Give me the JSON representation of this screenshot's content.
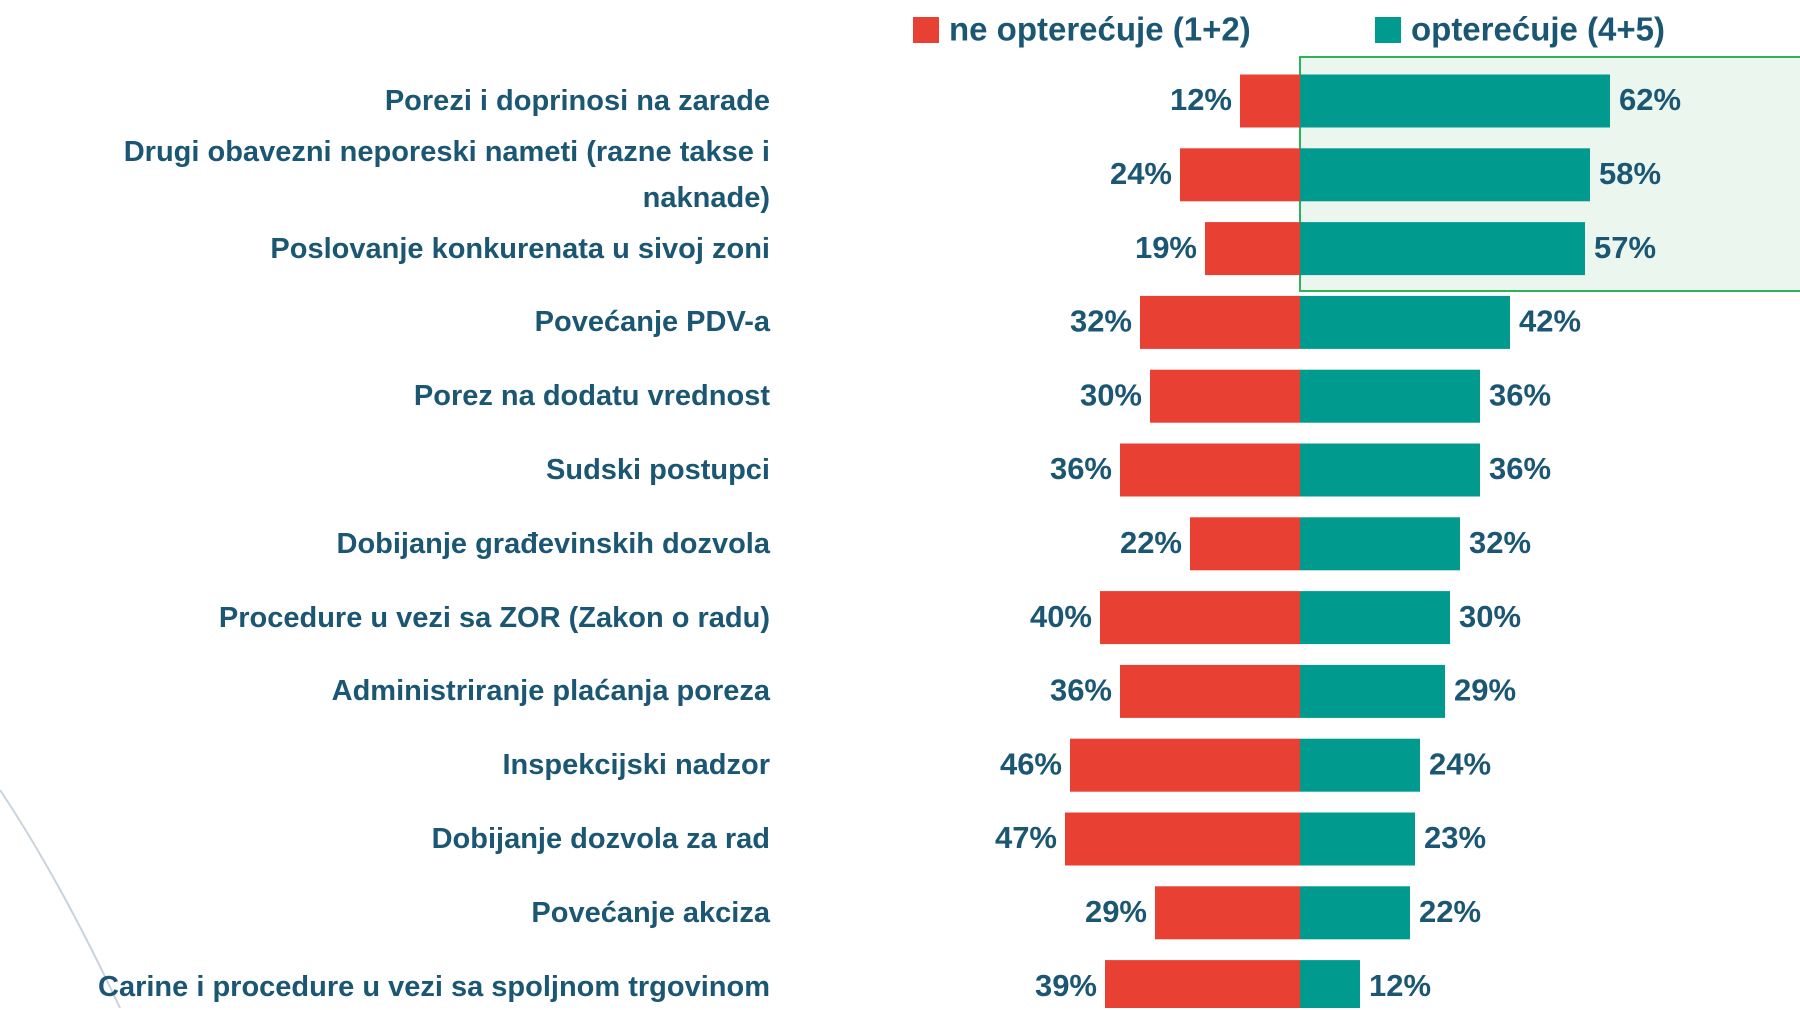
{
  "chart_data": {
    "type": "diverging_bar",
    "categories": [
      "Porezi i doprinosi na zarade",
      "Drugi obavezni neporeski nameti (razne takse i naknade)",
      "Poslovanje konkurenata u sivoj zoni",
      "Povećanje PDV-a",
      "Porez na dodatu vrednost",
      "Sudski postupci",
      "Dobijanje građevinskih dozvola",
      "Procedure u vezi sa ZOR (Zakon o radu)",
      "Administriranje plaćanja poreza",
      "Inspekcijski nadzor",
      "Dobijanje dozvola za rad",
      "Povećanje akciza",
      "Carine i procedure u vezi sa spoljnom trgovinom"
    ],
    "series": [
      {
        "name": "ne opterećuje (1+2)",
        "color": "#e84033",
        "values": [
          12,
          24,
          19,
          32,
          30,
          36,
          22,
          40,
          36,
          46,
          47,
          29,
          39
        ],
        "value_labels": [
          "12%",
          "24%",
          "19%",
          "32%",
          "30%",
          "36%",
          "22%",
          "40%",
          "36%",
          "46%",
          "47%",
          "29%",
          "39%"
        ]
      },
      {
        "name": "opterećuje (4+5)",
        "color": "#009a8e",
        "values": [
          62,
          58,
          57,
          42,
          36,
          36,
          32,
          30,
          29,
          24,
          23,
          22,
          12
        ],
        "value_labels": [
          "62%",
          "58%",
          "57%",
          "42%",
          "36%",
          "36%",
          "32%",
          "30%",
          "29%",
          "24%",
          "23%",
          "22%",
          "12%"
        ]
      }
    ],
    "legend": "top"
  }
}
